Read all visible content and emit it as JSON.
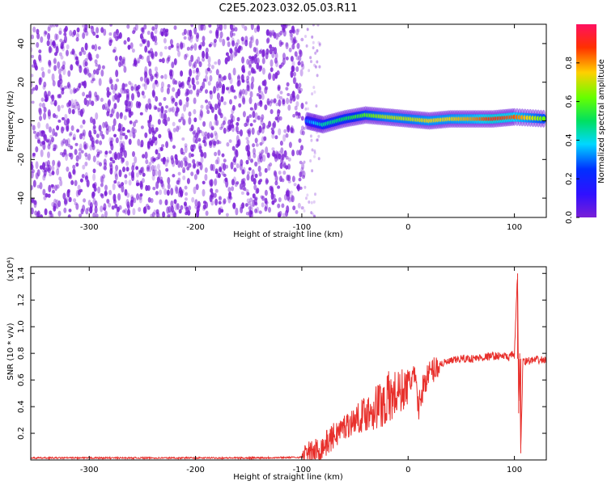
{
  "title": "C2E5.2023.032.05.03.R11",
  "colors": {
    "snr_line": "#e8302c",
    "spectrogram_noise": "#7a1fd6",
    "background": "#ffffff",
    "colorbar": [
      "#7a1fd6",
      "#1a1aff",
      "#00d0ff",
      "#00e060",
      "#55ff00",
      "#ffd000",
      "#ff4000",
      "#ff1060"
    ]
  },
  "chart_data": [
    {
      "type": "heatmap",
      "title": "C2E5.2023.032.05.03.R11",
      "xlabel": "Height of straight line (km)",
      "ylabel": "Frequency (Hz)",
      "xlim": [
        -355,
        130
      ],
      "ylim": [
        -50,
        50
      ],
      "xticks": [
        "-300",
        "-200",
        "-100",
        "0",
        "100"
      ],
      "yticks": [
        "-40",
        "-20",
        "0",
        "20",
        "40"
      ],
      "colorbar": {
        "label": "Normalized spectral amplitude",
        "range": [
          0,
          1
        ],
        "ticks": [
          "0.0",
          "0.2",
          "0.4",
          "0.6",
          "0.8"
        ],
        "colormap": "rainbow (violet-blue-cyan-green-yellow-red-magenta)"
      },
      "regions": [
        {
          "x_range": [
            -355,
            -98
          ],
          "content": "broadband noise, amplitude ~0.05-0.15"
        },
        {
          "x_range": [
            -98,
            130
          ],
          "content": "narrowband signal near 0 Hz, amplitude rising to ~0.9"
        }
      ],
      "signal_trace": {
        "x": [
          -95,
          -80,
          -60,
          -40,
          -20,
          0,
          20,
          40,
          60,
          80,
          100,
          130
        ],
        "freq_hz": [
          0,
          -2,
          1,
          3,
          2,
          1,
          0,
          1,
          1,
          1,
          2,
          1
        ],
        "amplitude": [
          0.3,
          0.45,
          0.5,
          0.6,
          0.7,
          0.7,
          0.75,
          0.75,
          0.8,
          0.9,
          0.85,
          0.6
        ]
      }
    },
    {
      "type": "line",
      "xlabel": "Height of straight line (km)",
      "ylabel": "SNR (10 * v/v)",
      "y_multiplier": "(x10⁴)",
      "xlim": [
        -355,
        130
      ],
      "ylim": [
        0,
        1.45
      ],
      "xticks": [
        "-300",
        "-200",
        "-100",
        "0",
        "100"
      ],
      "yticks": [
        "0.2",
        "0.4",
        "0.6",
        "0.8",
        "1.0",
        "1.2",
        "1.4"
      ],
      "series": [
        {
          "x": [
            -355,
            -300,
            -250,
            -200,
            -150,
            -100,
            -90,
            -80,
            -70,
            -60,
            -50,
            -40,
            -30,
            -20,
            -10,
            0,
            5,
            10,
            15,
            20,
            30,
            40,
            50,
            60,
            70,
            80,
            90,
            95,
            100,
            103,
            104,
            105,
            106,
            108,
            110,
            120,
            130
          ],
          "y": [
            0.015,
            0.015,
            0.015,
            0.015,
            0.015,
            0.02,
            0.05,
            0.1,
            0.18,
            0.25,
            0.3,
            0.35,
            0.4,
            0.45,
            0.5,
            0.55,
            0.65,
            0.4,
            0.58,
            0.65,
            0.72,
            0.74,
            0.76,
            0.76,
            0.77,
            0.78,
            0.78,
            0.77,
            0.8,
            1.4,
            0.35,
            0.8,
            0.05,
            0.76,
            0.74,
            0.75,
            0.75
          ]
        }
      ]
    }
  ]
}
